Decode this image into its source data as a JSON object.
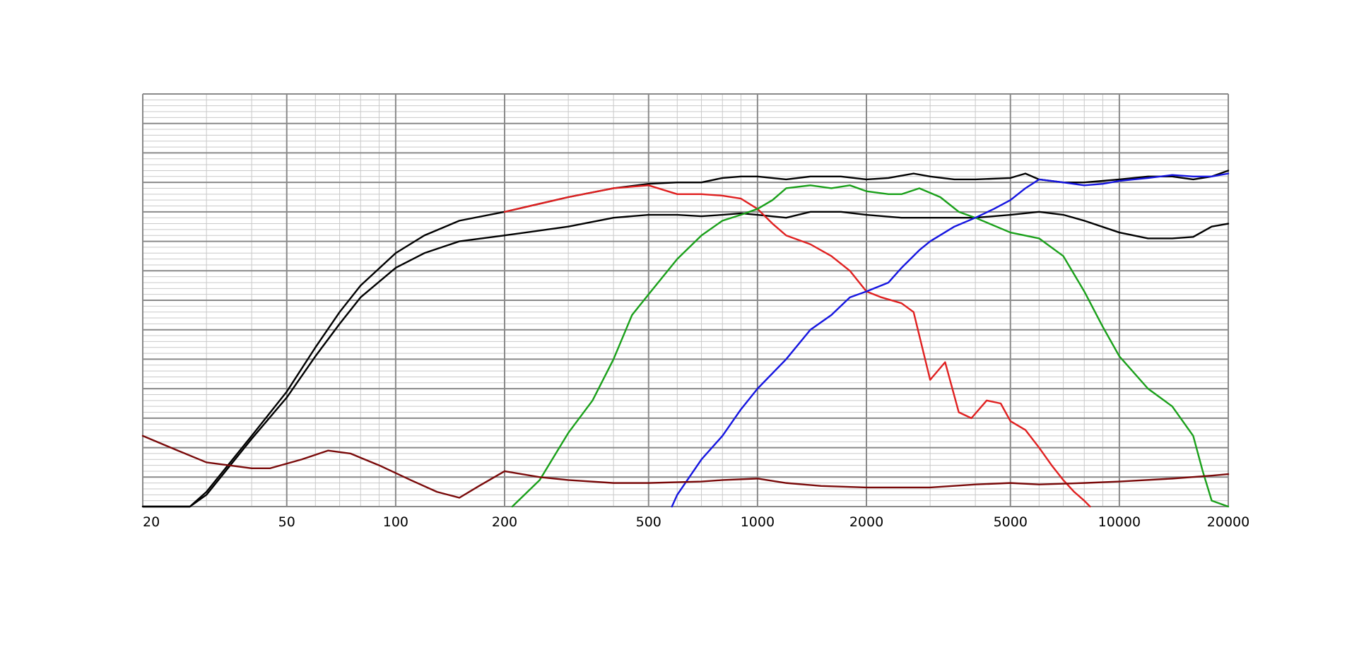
{
  "chart_data": {
    "type": "line",
    "title": "",
    "xlabel": "",
    "ylabel": "",
    "x_scale": "log",
    "xlim": [
      20,
      20000
    ],
    "ylim": [
      0,
      14
    ],
    "grid": true,
    "x_tick_labels": [
      {
        "value": 20,
        "label": "20"
      },
      {
        "value": 50,
        "label": "50"
      },
      {
        "value": 100,
        "label": "100"
      },
      {
        "value": 200,
        "label": "200"
      },
      {
        "value": 500,
        "label": "500"
      },
      {
        "value": 1000,
        "label": "1000"
      },
      {
        "value": 2000,
        "label": "2000"
      },
      {
        "value": 5000,
        "label": "5000"
      },
      {
        "value": 10000,
        "label": "10000"
      },
      {
        "value": 20000,
        "label": "20000"
      }
    ],
    "series": [
      {
        "color": "#000000",
        "points": [
          [
            20,
            0
          ],
          [
            27,
            0
          ],
          [
            30,
            0.5
          ],
          [
            40,
            2.4
          ],
          [
            50,
            3.9
          ],
          [
            60,
            5.4
          ],
          [
            70,
            6.6
          ],
          [
            80,
            7.5
          ],
          [
            100,
            8.6
          ],
          [
            120,
            9.2
          ],
          [
            150,
            9.7
          ],
          [
            200,
            10.0
          ],
          [
            300,
            10.5
          ],
          [
            400,
            10.8
          ],
          [
            500,
            10.95
          ],
          [
            600,
            11.0
          ],
          [
            700,
            11.0
          ],
          [
            800,
            11.15
          ],
          [
            900,
            11.2
          ],
          [
            1000,
            11.2
          ],
          [
            1200,
            11.1
          ],
          [
            1400,
            11.2
          ],
          [
            1700,
            11.2
          ],
          [
            2000,
            11.1
          ],
          [
            2300,
            11.15
          ],
          [
            2700,
            11.3
          ],
          [
            3000,
            11.2
          ],
          [
            3500,
            11.1
          ],
          [
            4000,
            11.1
          ],
          [
            5000,
            11.15
          ],
          [
            5500,
            11.3
          ],
          [
            6000,
            11.1
          ],
          [
            7000,
            11.0
          ],
          [
            8000,
            11.0
          ],
          [
            10000,
            11.1
          ],
          [
            12000,
            11.2
          ],
          [
            14000,
            11.2
          ],
          [
            16000,
            11.1
          ],
          [
            18000,
            11.2
          ],
          [
            20000,
            11.4
          ]
        ]
      },
      {
        "color": "#000000",
        "points": [
          [
            20,
            0
          ],
          [
            27,
            0
          ],
          [
            30,
            0.4
          ],
          [
            40,
            2.3
          ],
          [
            50,
            3.7
          ],
          [
            60,
            5.1
          ],
          [
            70,
            6.2
          ],
          [
            80,
            7.1
          ],
          [
            100,
            8.1
          ],
          [
            120,
            8.6
          ],
          [
            150,
            9.0
          ],
          [
            200,
            9.2
          ],
          [
            300,
            9.5
          ],
          [
            400,
            9.8
          ],
          [
            500,
            9.9
          ],
          [
            600,
            9.9
          ],
          [
            700,
            9.85
          ],
          [
            800,
            9.9
          ],
          [
            900,
            9.95
          ],
          [
            1000,
            9.9
          ],
          [
            1200,
            9.8
          ],
          [
            1400,
            10.0
          ],
          [
            1700,
            10.0
          ],
          [
            2000,
            9.9
          ],
          [
            2500,
            9.8
          ],
          [
            3000,
            9.8
          ],
          [
            4000,
            9.8
          ],
          [
            5000,
            9.9
          ],
          [
            6000,
            10.0
          ],
          [
            7000,
            9.9
          ],
          [
            8000,
            9.7
          ],
          [
            10000,
            9.3
          ],
          [
            12000,
            9.1
          ],
          [
            14000,
            9.1
          ],
          [
            16000,
            9.15
          ],
          [
            18000,
            9.5
          ],
          [
            20000,
            9.6
          ]
        ]
      },
      {
        "color": "#e02020",
        "points": [
          [
            200,
            10.0
          ],
          [
            300,
            10.5
          ],
          [
            400,
            10.8
          ],
          [
            500,
            10.9
          ],
          [
            600,
            10.6
          ],
          [
            700,
            10.6
          ],
          [
            800,
            10.55
          ],
          [
            900,
            10.45
          ],
          [
            1000,
            10.1
          ],
          [
            1100,
            9.6
          ],
          [
            1200,
            9.2
          ],
          [
            1400,
            8.9
          ],
          [
            1600,
            8.5
          ],
          [
            1800,
            8.0
          ],
          [
            2000,
            7.3
          ],
          [
            2200,
            7.1
          ],
          [
            2500,
            6.9
          ],
          [
            2700,
            6.6
          ],
          [
            3000,
            4.3
          ],
          [
            3300,
            4.9
          ],
          [
            3600,
            3.2
          ],
          [
            3900,
            3.0
          ],
          [
            4300,
            3.6
          ],
          [
            4700,
            3.5
          ],
          [
            5000,
            2.9
          ],
          [
            5500,
            2.6
          ],
          [
            6000,
            2.0
          ],
          [
            6500,
            1.4
          ],
          [
            7000,
            0.9
          ],
          [
            7500,
            0.5
          ],
          [
            8000,
            0.2
          ],
          [
            8300,
            0
          ]
        ]
      },
      {
        "color": "#1aa01a",
        "points": [
          [
            210,
            0
          ],
          [
            250,
            0.9
          ],
          [
            300,
            2.5
          ],
          [
            350,
            3.6
          ],
          [
            400,
            5.0
          ],
          [
            450,
            6.5
          ],
          [
            500,
            7.2
          ],
          [
            600,
            8.4
          ],
          [
            700,
            9.2
          ],
          [
            800,
            9.7
          ],
          [
            900,
            9.9
          ],
          [
            1000,
            10.1
          ],
          [
            1100,
            10.4
          ],
          [
            1200,
            10.8
          ],
          [
            1400,
            10.9
          ],
          [
            1600,
            10.8
          ],
          [
            1800,
            10.9
          ],
          [
            2000,
            10.7
          ],
          [
            2300,
            10.6
          ],
          [
            2500,
            10.6
          ],
          [
            2800,
            10.8
          ],
          [
            3200,
            10.5
          ],
          [
            3600,
            10.0
          ],
          [
            4000,
            9.8
          ],
          [
            5000,
            9.3
          ],
          [
            6000,
            9.1
          ],
          [
            7000,
            8.5
          ],
          [
            8000,
            7.3
          ],
          [
            9000,
            6.1
          ],
          [
            10000,
            5.1
          ],
          [
            12000,
            4.0
          ],
          [
            14000,
            3.4
          ],
          [
            16000,
            2.4
          ],
          [
            17000,
            1.2
          ],
          [
            18000,
            0.2
          ],
          [
            20000,
            0
          ]
        ]
      },
      {
        "color": "#1515e0",
        "points": [
          [
            580,
            0
          ],
          [
            600,
            0.4
          ],
          [
            700,
            1.6
          ],
          [
            800,
            2.4
          ],
          [
            900,
            3.3
          ],
          [
            1000,
            4.0
          ],
          [
            1200,
            5.0
          ],
          [
            1400,
            6.0
          ],
          [
            1600,
            6.5
          ],
          [
            1800,
            7.1
          ],
          [
            2000,
            7.3
          ],
          [
            2300,
            7.6
          ],
          [
            2500,
            8.1
          ],
          [
            2800,
            8.7
          ],
          [
            3000,
            9.0
          ],
          [
            3500,
            9.5
          ],
          [
            4000,
            9.8
          ],
          [
            4500,
            10.1
          ],
          [
            5000,
            10.4
          ],
          [
            5500,
            10.8
          ],
          [
            6000,
            11.1
          ],
          [
            7000,
            11.0
          ],
          [
            8000,
            10.9
          ],
          [
            9000,
            10.95
          ],
          [
            10000,
            11.05
          ],
          [
            12000,
            11.15
          ],
          [
            14000,
            11.25
          ],
          [
            16000,
            11.2
          ],
          [
            18000,
            11.2
          ],
          [
            20000,
            11.3
          ]
        ]
      },
      {
        "color": "#7a0a0a",
        "points": [
          [
            20,
            2.4
          ],
          [
            25,
            1.9
          ],
          [
            30,
            1.5
          ],
          [
            40,
            1.3
          ],
          [
            45,
            1.3
          ],
          [
            55,
            1.6
          ],
          [
            65,
            1.9
          ],
          [
            75,
            1.8
          ],
          [
            90,
            1.4
          ],
          [
            110,
            0.9
          ],
          [
            130,
            0.5
          ],
          [
            150,
            0.3
          ],
          [
            170,
            0.7
          ],
          [
            200,
            1.2
          ],
          [
            250,
            1.0
          ],
          [
            300,
            0.9
          ],
          [
            400,
            0.8
          ],
          [
            500,
            0.8
          ],
          [
            700,
            0.85
          ],
          [
            800,
            0.9
          ],
          [
            1000,
            0.95
          ],
          [
            1200,
            0.8
          ],
          [
            1500,
            0.7
          ],
          [
            2000,
            0.65
          ],
          [
            3000,
            0.65
          ],
          [
            4000,
            0.75
          ],
          [
            5000,
            0.8
          ],
          [
            6000,
            0.75
          ],
          [
            8000,
            0.8
          ],
          [
            10000,
            0.85
          ],
          [
            14000,
            0.95
          ],
          [
            18000,
            1.05
          ],
          [
            20000,
            1.1
          ]
        ]
      }
    ]
  }
}
